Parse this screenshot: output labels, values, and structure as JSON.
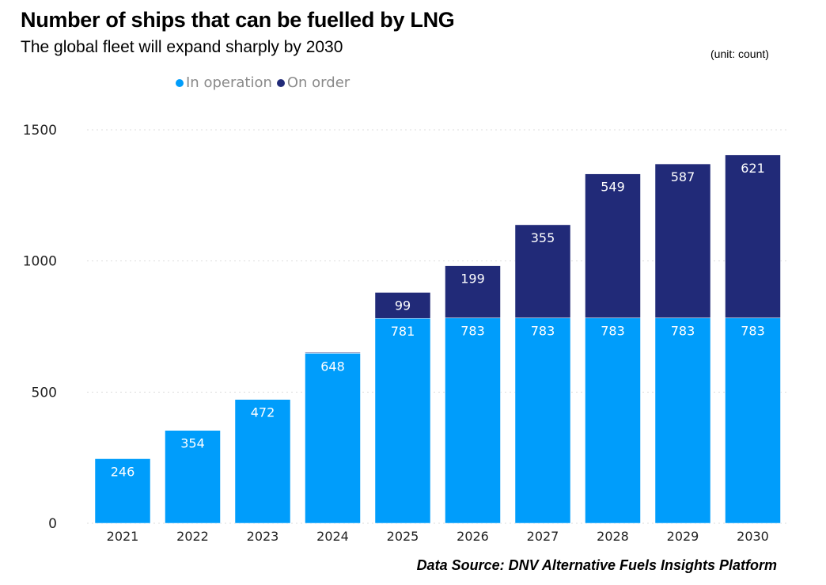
{
  "chart_data": {
    "type": "bar",
    "stacked": true,
    "title": "Number of ships that can be fuelled by LNG",
    "subtitle": "The global fleet will expand sharply by 2030",
    "unit_note": "(unit: count)",
    "source": "Data Source: DNV Alternative Fuels Insights Platform",
    "categories": [
      "2021",
      "2022",
      "2023",
      "2024",
      "2025",
      "2026",
      "2027",
      "2028",
      "2029",
      "2030"
    ],
    "series": [
      {
        "name": "In operation",
        "color": "#009dfb",
        "values": [
          246,
          354,
          472,
          648,
          781,
          783,
          783,
          783,
          783,
          783
        ],
        "labels": [
          "246",
          "354",
          "472",
          "648",
          "781",
          "783",
          "783",
          "783",
          "783",
          "783"
        ]
      },
      {
        "name": "On order",
        "color": "#212a78",
        "values": [
          0,
          0,
          0,
          3,
          99,
          199,
          355,
          549,
          587,
          621
        ],
        "labels": [
          "",
          "",
          "",
          "",
          "99",
          "199",
          "355",
          "549",
          "587",
          "621"
        ]
      }
    ],
    "yticks": [
      "0",
      "500",
      "1000",
      "1500"
    ],
    "ylim": [
      0,
      1500
    ],
    "grid": true,
    "legend_position": "top-left"
  }
}
